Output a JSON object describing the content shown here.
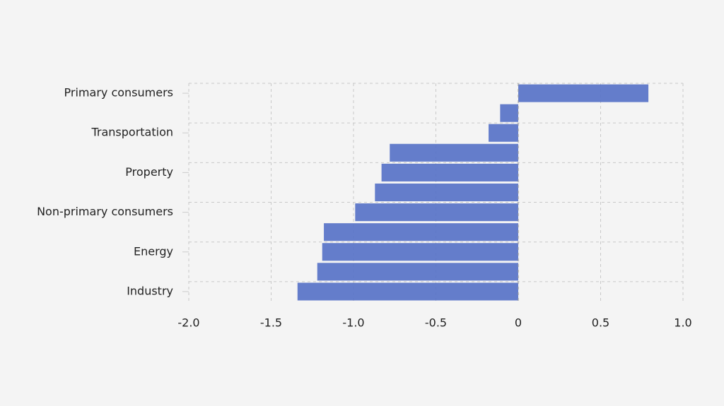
{
  "chart_data": {
    "type": "bar",
    "orientation": "horizontal",
    "categories": [
      "Primary consumers",
      null,
      "Transportation",
      null,
      "Property",
      null,
      "Non-primary consumers",
      null,
      "Energy",
      null,
      "Industry"
    ],
    "values": [
      0.79,
      -0.11,
      -0.18,
      -0.78,
      -0.83,
      -0.87,
      -0.99,
      -1.18,
      -1.19,
      -1.22,
      -1.34
    ],
    "color": "#5470c6",
    "xlim": [
      -2,
      1
    ],
    "xticks": [
      {
        "value": -2,
        "label": "-2.0"
      },
      -1.5,
      {
        "value": -1,
        "label": "-1.0"
      },
      -0.5,
      0,
      0.5,
      {
        "value": 1,
        "label": "1.0"
      }
    ],
    "grid": true
  }
}
